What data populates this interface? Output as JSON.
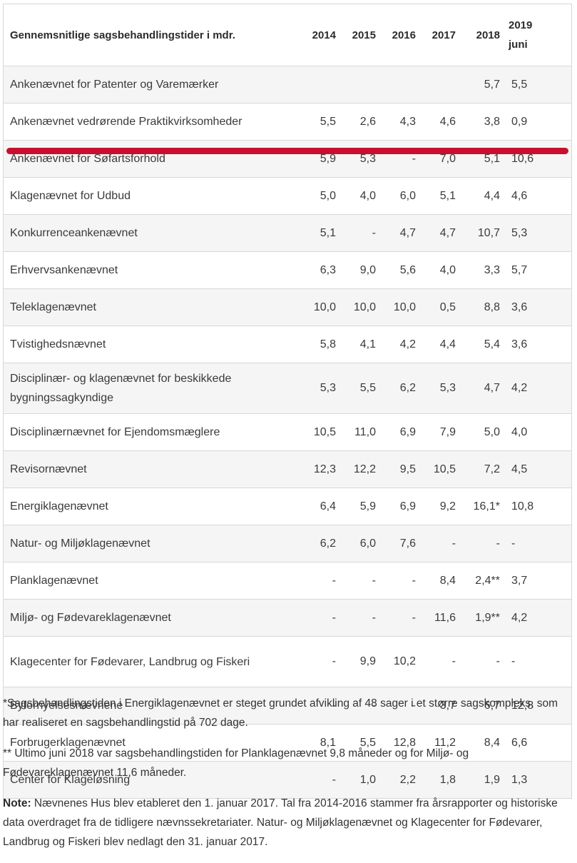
{
  "table": {
    "header": {
      "title": "Gennemsnitlige sagsbehandlingstider i mdr.",
      "years": [
        "2014",
        "2015",
        "2016",
        "2017",
        "2018"
      ],
      "last_year": "2019",
      "last_year_sub": "juni"
    },
    "rows": [
      {
        "name": "Ankenævnet for Patenter og Varemærker",
        "values": [
          "",
          "",
          "",
          "",
          "5,7",
          "5,5"
        ]
      },
      {
        "name": "Ankenævnet vedrørende Praktikvirksomheder",
        "values": [
          "5,5",
          "2,6",
          "4,3",
          "4,6",
          "3,8",
          "0,9"
        ]
      },
      {
        "name": "Ankenævnet for Søfartsforhold",
        "values": [
          "5,9",
          "5,3",
          "-",
          "7,0",
          "5,1",
          "10,6"
        ]
      },
      {
        "name": "Klagenævnet for Udbud",
        "values": [
          "5,0",
          "4,0",
          "6,0",
          "5,1",
          "4,4",
          "4,6"
        ]
      },
      {
        "name": "Konkurrenceankenævnet",
        "values": [
          "5,1",
          "-",
          "4,7",
          "4,7",
          "10,7",
          "5,3"
        ]
      },
      {
        "name": "Erhvervsankenævnet",
        "values": [
          "6,3",
          "9,0",
          "5,6",
          "4,0",
          "3,3",
          "5,7"
        ]
      },
      {
        "name": "Teleklagenævnet",
        "values": [
          "10,0",
          "10,0",
          "10,0",
          "0,5",
          "8,8",
          "3,6"
        ]
      },
      {
        "name": "Tvistighedsnævnet",
        "values": [
          "5,8",
          "4,1",
          "4,2",
          "4,4",
          "5,4",
          "3,6"
        ]
      },
      {
        "name": "Disciplinær- og klagenævnet for beskikkede bygningssagkyndige",
        "values": [
          "5,3",
          "5,5",
          "6,2",
          "5,3",
          "4,7",
          "4,2"
        ]
      },
      {
        "name": "Disciplinærnævnet for Ejendomsmæglere",
        "values": [
          "10,5",
          "11,0",
          "6,9",
          "7,9",
          "5,0",
          "4,0"
        ]
      },
      {
        "name": "Revisornævnet",
        "values": [
          "12,3",
          "12,2",
          "9,5",
          "10,5",
          "7,2",
          "4,5"
        ]
      },
      {
        "name": "Energiklagenævnet",
        "values": [
          "6,4",
          "5,9",
          "6,9",
          "9,2",
          "16,1*",
          "10,8"
        ]
      },
      {
        "name": "Natur- og Miljøklagenævnet",
        "values": [
          "6,2",
          "6,0",
          "7,6",
          "-",
          "-",
          "-"
        ]
      },
      {
        "name": "Planklagenævnet",
        "values": [
          "-",
          "-",
          "-",
          "8,4",
          "2,4**",
          "3,7"
        ]
      },
      {
        "name": "Miljø- og Fødevareklagenævnet",
        "values": [
          "-",
          "-",
          "-",
          "11,6",
          "1,9**",
          "4,2"
        ]
      },
      {
        "name": "Klagecenter for Fødevarer, Landbrug og Fiskeri",
        "values": [
          "-",
          "9,9",
          "10,2",
          "-",
          "-",
          "-"
        ]
      },
      {
        "name": "Byfornyelsesnævnene",
        "values": [
          "-",
          "-",
          "-",
          "3,7",
          "6,7",
          "12,8"
        ]
      },
      {
        "name": "Forbrugerklagenævnet",
        "values": [
          "8,1",
          "5,5",
          "12,8",
          "11,2",
          "8,4",
          "6,6"
        ]
      },
      {
        "name": "Center for Klageløsning",
        "values": [
          "-",
          "1,0",
          "2,2",
          "1,8",
          "1,9",
          "1,3"
        ]
      }
    ]
  },
  "notes": {
    "footnote_1": "*Sagsbehandlingstiden i Energiklagenævnet er steget grundet afvikling af 48 sager i et større sagskompleks, som har realiseret en sagsbehandlingstid på 702 dage.",
    "footnote_2": "** Ultimo juni 2018 var sagsbehandlingstiden for Planklagenævnet 9,8 måneder og for Miljø- og Fødevareklagenævnet 11,6 måneder.",
    "note_label": "Note:",
    "note_text": " Nævnenes Hus blev etableret den 1. januar 2017. Tal fra 2014-2016 stammer fra årsrapporter og historiske data overdraget fra de tidligere nævnssekretariater. Natur- og Miljøklagenævnet og Klagecenter for Fødevarer, Landbrug og Fiskeri blev nedlagt den 31. januar 2017."
  },
  "highlight": {
    "row": "Ankenævnet for Søfartsforhold",
    "color": "#c8102e"
  }
}
